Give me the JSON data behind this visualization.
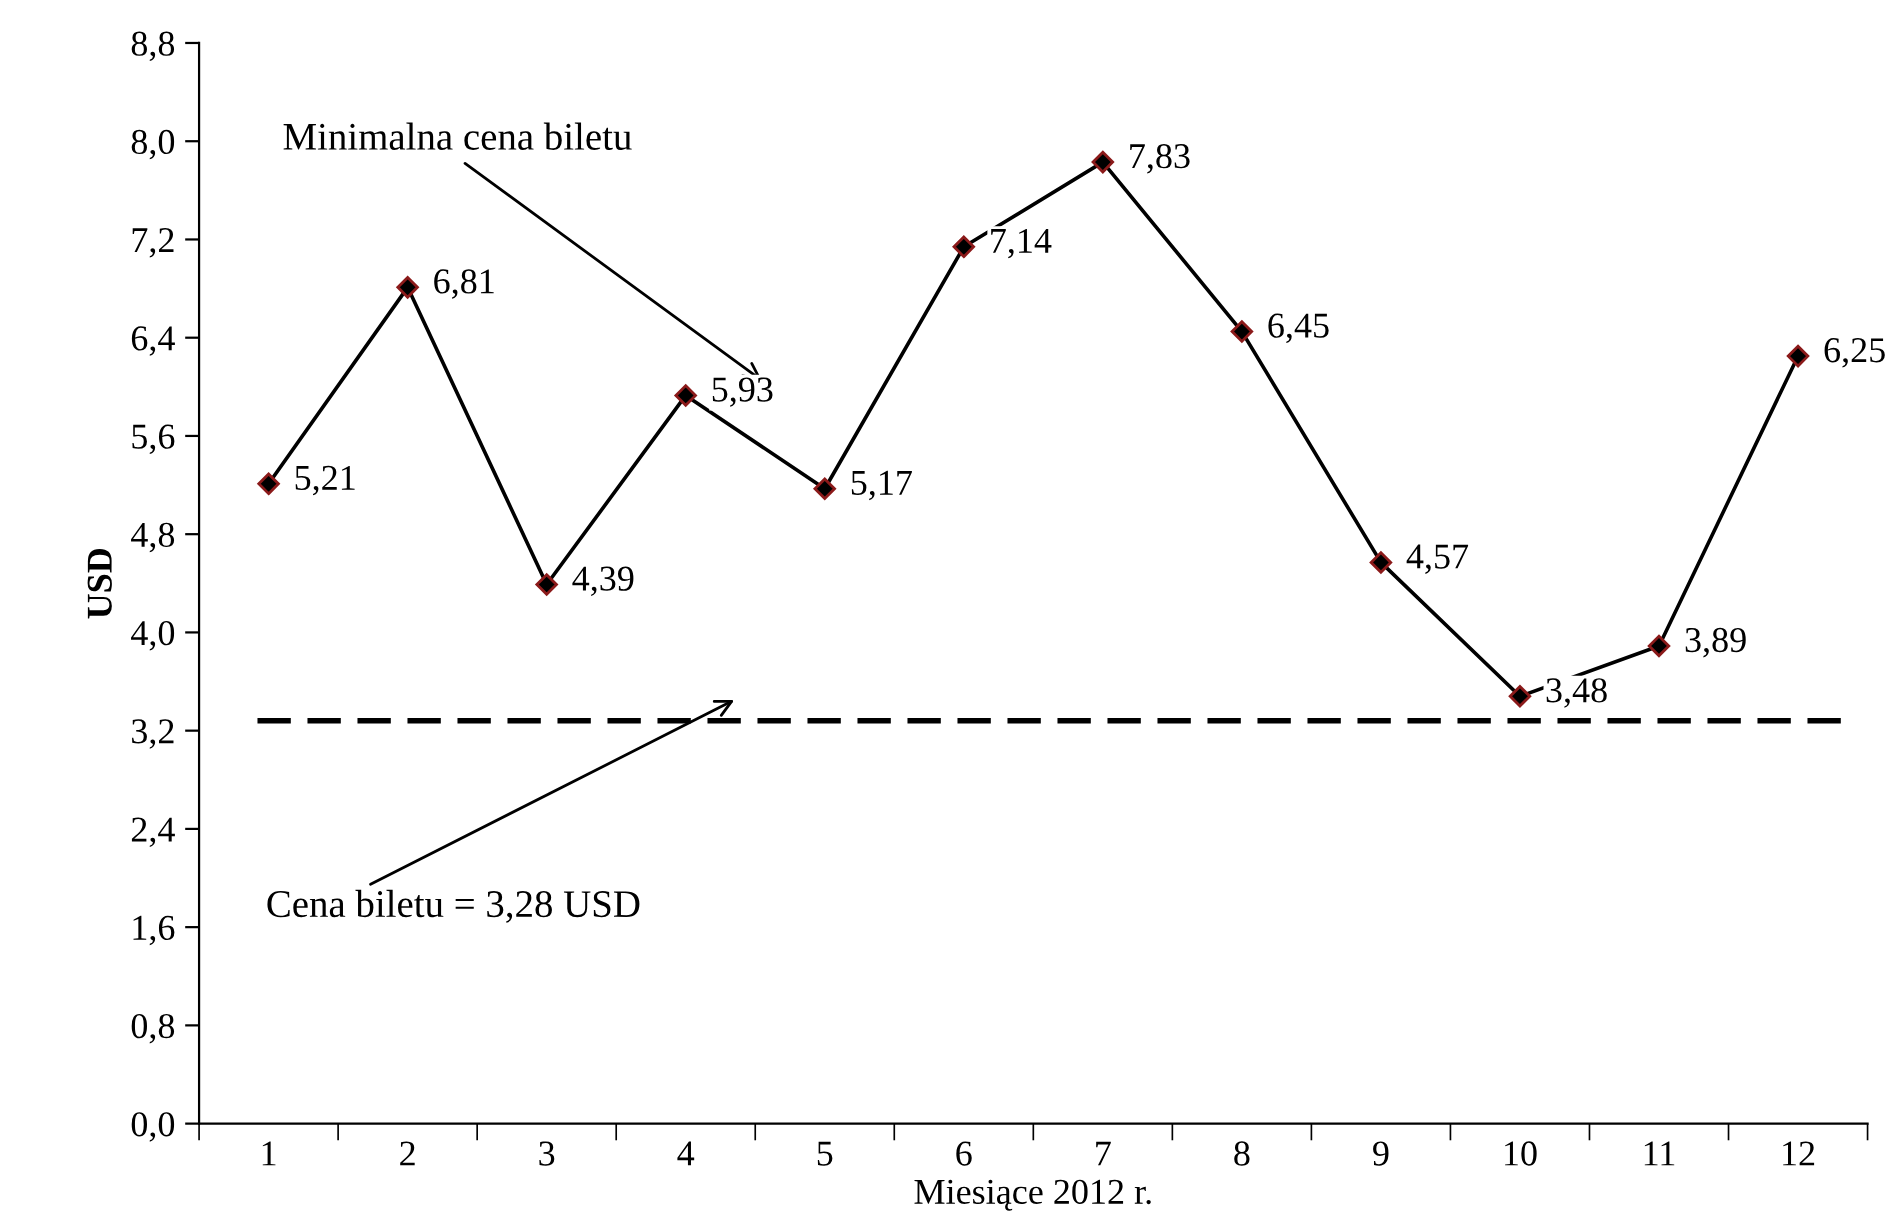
{
  "chart_data": {
    "type": "line",
    "xlabel": "Miesiące 2012 r.",
    "ylabel": "USD",
    "categories": [
      "1",
      "2",
      "3",
      "4",
      "5",
      "6",
      "7",
      "8",
      "9",
      "10",
      "11",
      "12"
    ],
    "series": [
      {
        "color": "#000000",
        "values": [
          5.21,
          6.81,
          4.39,
          5.93,
          5.17,
          7.14,
          7.83,
          6.45,
          4.57,
          3.48,
          3.89,
          6.25
        ],
        "value_labels": [
          "5,21",
          "6,81",
          "4,39",
          "5,93",
          "5,17",
          "7,14",
          "7,83",
          "6,45",
          "4,57",
          "3,48",
          "3,89",
          "6,25"
        ]
      }
    ],
    "marker": "diamond",
    "line_style": "solid",
    "grid": false,
    "ylim": [
      0,
      8.8
    ],
    "yticks": [
      {
        "value": 0,
        "label": "0,0"
      },
      {
        "value": 0.8,
        "label": "0,8"
      },
      {
        "value": 1.6,
        "label": "1,6"
      },
      {
        "value": 2.4,
        "label": "2,4"
      },
      {
        "value": 3.2,
        "label": "3,2"
      },
      {
        "value": 4.0,
        "label": "4,0"
      },
      {
        "value": 4.8,
        "label": "4,8"
      },
      {
        "value": 5.6,
        "label": "5,6"
      },
      {
        "value": 6.4,
        "label": "6,4"
      },
      {
        "value": 7.2,
        "label": "7,2"
      },
      {
        "value": 8.0,
        "label": "8,0"
      },
      {
        "value": 8.8,
        "label": "8,8"
      }
    ],
    "ref_lines": [
      {
        "axis": "y",
        "value": 3.28,
        "color": "#000000",
        "line_style": "dashed"
      }
    ],
    "annotations": [
      "Minimalna cena biletu",
      "Cena biletu = 3,28 USD"
    ]
  }
}
